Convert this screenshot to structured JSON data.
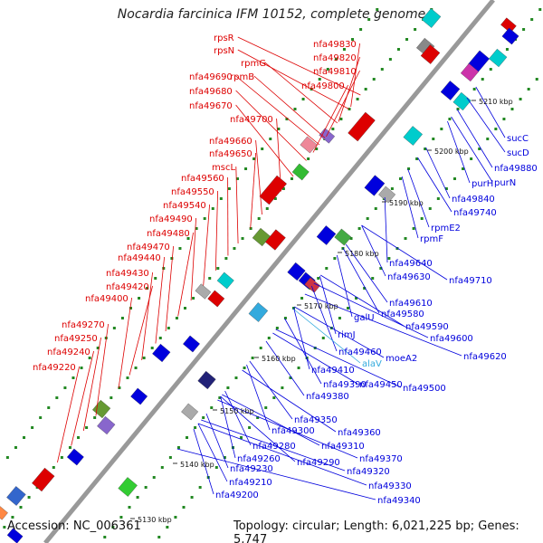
{
  "title": "Nocardia farcinica IFM 10152, complete genome",
  "accession_text": "Accession: NC_006361",
  "topology_text": "Topology: circular; Length: 6,021,225 bp; Genes: 5,747",
  "colors": {
    "top_strand": "#dd0000",
    "bottom_strand": "#0000dd",
    "rna": "#33aadd",
    "axis": "#999999",
    "dots": "#228822"
  },
  "ticks": [
    "5130 kbp",
    "5140 kbp",
    "5150 kbp",
    "5160 kbp",
    "5170 kbp",
    "5180 kbp",
    "5190 kbp",
    "5200 kbp",
    "5210 kbp"
  ],
  "top_genes": [
    "rpsR",
    "rpsN",
    "rpmG",
    "rpmB",
    "nfa49830",
    "nfa49820",
    "nfa49810",
    "nfa49800",
    "nfa49690",
    "nfa49680",
    "nfa49670",
    "nfa49700",
    "nfa49660",
    "nfa49650",
    "mscL",
    "nfa49560",
    "nfa49550",
    "nfa49540",
    "nfa49490",
    "nfa49480",
    "nfa49470",
    "nfa49440",
    "nfa49430",
    "nfa49420",
    "nfa49400",
    "nfa49270",
    "nfa49250",
    "nfa49240",
    "nfa49220"
  ],
  "bottom_genes": [
    "sucC",
    "sucD",
    "nfa49880",
    "purH",
    "purN",
    "nfa49840",
    "nfa49740",
    "rpmE2",
    "rpmF",
    "nfa49640",
    "nfa49630",
    "nfa49710",
    "nfa49610",
    "galU",
    "nfa49580",
    "nfa49590",
    "nfa49600",
    "rimJ",
    "nfa49620",
    "nfa49460",
    "moeA2",
    "alaV",
    "nfa49500",
    "nfa49410",
    "nfa49390",
    "nfa49450",
    "nfa49380",
    "nfa49350",
    "nfa49360",
    "nfa49300",
    "nfa49310",
    "nfa49280",
    "nfa49370",
    "nfa49260",
    "nfa49290",
    "nfa49320",
    "nfa49230",
    "nfa49210",
    "nfa49330",
    "nfa49200",
    "nfa49340"
  ]
}
